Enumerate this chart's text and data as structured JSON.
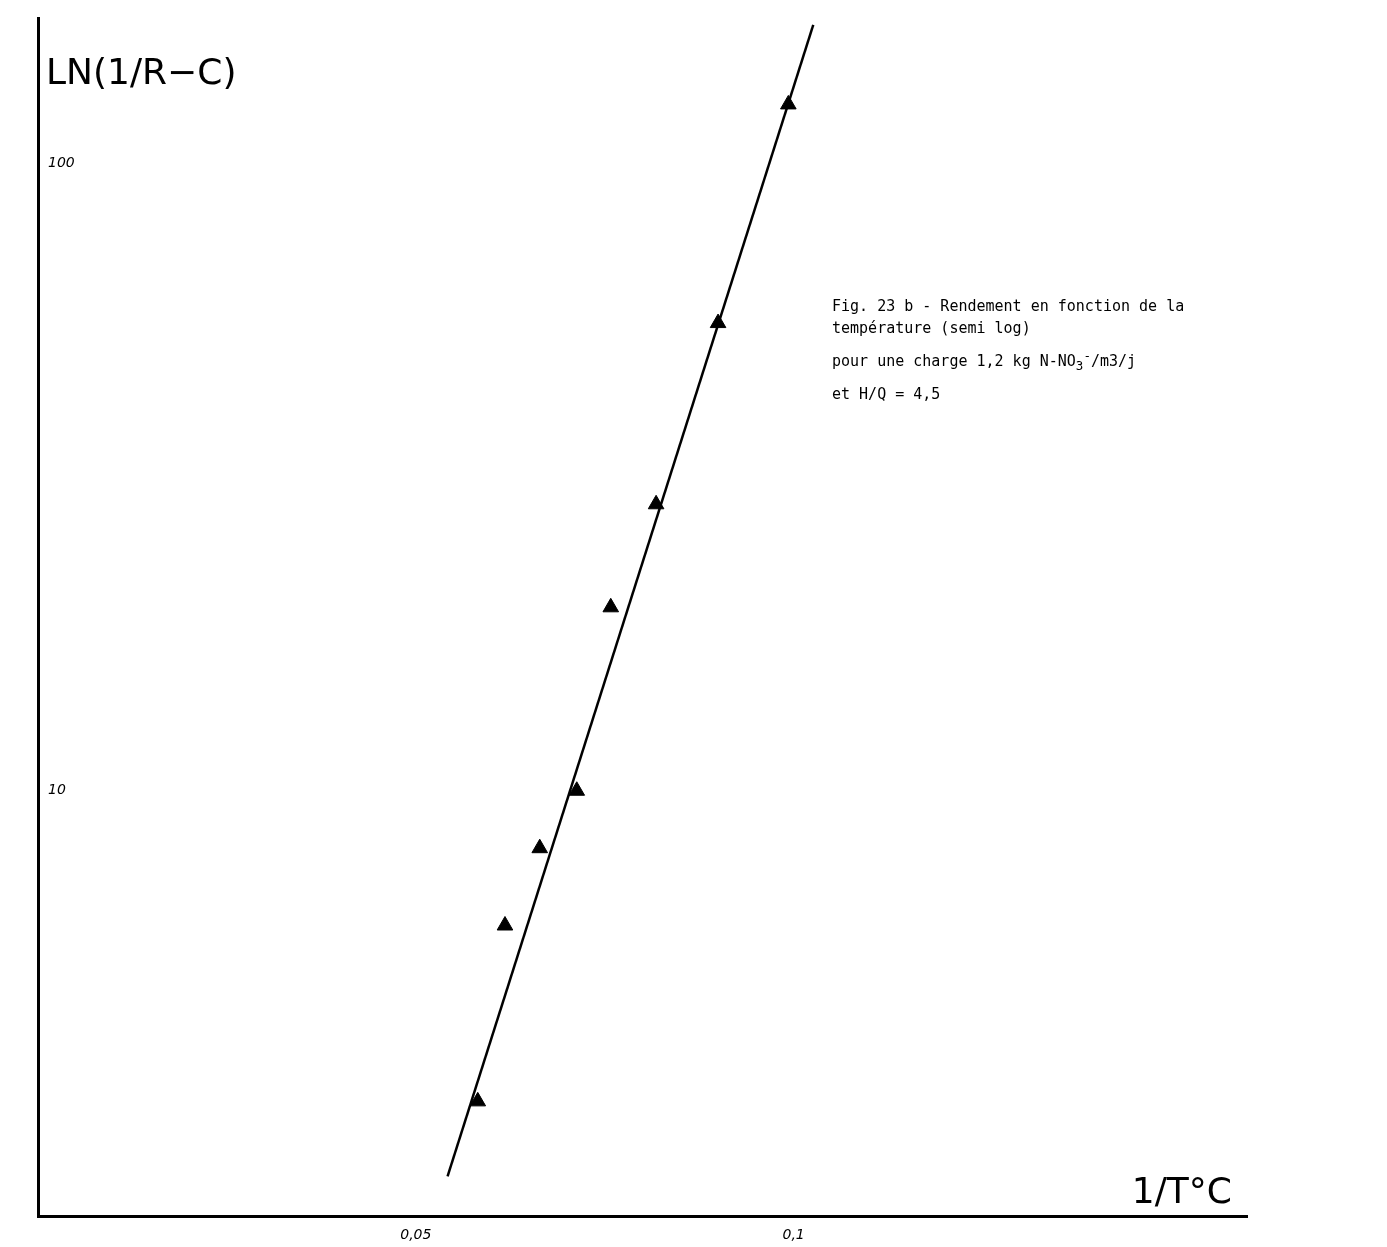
{
  "chart_data": {
    "type": "scatter",
    "xlabel": "1/T°C",
    "ylabel": "LN(1/R−C)",
    "annotations": [
      "Fig. 23 b - Rendement en fonction de la température (semi log)",
      "pour une charge 1,2 kg N-NO$_{3}$$^{-}$/m3/j",
      "et H/Q = 4,5"
    ],
    "series": [
      {
        "color": "#000000",
        "marker": "triangle",
        "x": [
          0.0582,
          0.0618,
          0.0664,
          0.0713,
          0.0758,
          0.0818,
          0.09,
          0.0993
        ],
        "values": [
          3.2,
          6.1,
          8.1,
          10,
          19.6,
          28.6,
          55.6,
          124
        ]
      },
      {
        "type": "line",
        "color": "#000000",
        "marker": "none",
        "line_style": "solid",
        "x": [
          0.0542,
          0.1026
        ],
        "values": [
          2.43,
          166
        ]
      }
    ],
    "xlim": [
      0,
      0.16
    ],
    "ylim": [
      2.1,
      170
    ],
    "log": "y",
    "xticks": [
      {
        "value": 0.05,
        "label": "0,05"
      },
      {
        "value": 0.1,
        "label": "0,1"
      }
    ],
    "yticks": [
      10,
      100
    ],
    "grid": false,
    "legend": false
  }
}
